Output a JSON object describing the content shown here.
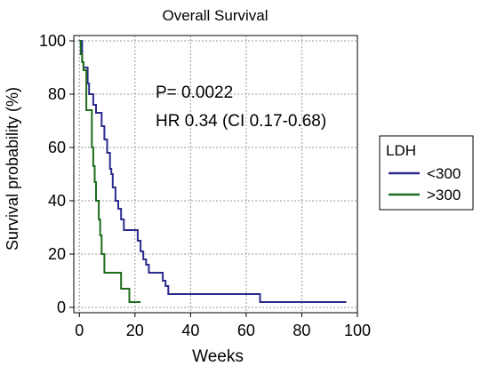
{
  "chart_data": {
    "type": "line",
    "step": true,
    "title": "Overall Survival",
    "xlabel": "Weeks",
    "ylabel": "Survival probability (%)",
    "xlim": [
      -2,
      100
    ],
    "ylim": [
      -2,
      102
    ],
    "xticks": [
      0,
      20,
      40,
      60,
      80,
      100
    ],
    "yticks": [
      0,
      20,
      40,
      60,
      80,
      100
    ],
    "grid": true,
    "grid_style": "dotted",
    "annotations": [
      "P= 0.0022",
      "HR 0.34 (CI 0.17-0.68)"
    ],
    "legend": {
      "title": "LDH",
      "placement": "right",
      "entries": [
        {
          "name": "<300",
          "color": "#2b2b8e"
        },
        {
          "name": ">300",
          "color": "#1e6b1e"
        }
      ]
    },
    "series": [
      {
        "name": "<300",
        "color": "#2b2b8e",
        "x": [
          0,
          1,
          1.5,
          2,
          3,
          3.5,
          4.5,
          5,
          6,
          7.5,
          8,
          9,
          10,
          11,
          11.5,
          12,
          13,
          14,
          15,
          16,
          20,
          21,
          22,
          23,
          24,
          25,
          29,
          30,
          31,
          32,
          64,
          65,
          96
        ],
        "y": [
          100,
          92,
          90,
          90,
          84,
          80,
          80,
          76,
          73,
          73,
          68,
          63,
          58,
          52,
          50,
          45,
          40,
          37,
          33,
          29,
          29,
          25,
          21,
          18,
          16,
          13,
          13,
          10,
          8,
          5,
          5,
          2,
          2
        ]
      },
      {
        "name": ">300",
        "color": "#1e6b1e",
        "x": [
          0,
          0.5,
          1,
          1.5,
          2,
          2.5,
          4,
          4.5,
          5,
          5.5,
          6,
          7,
          7.5,
          8,
          9,
          10,
          14,
          15,
          17,
          18,
          22
        ],
        "y": [
          100,
          95,
          92,
          89,
          89,
          74,
          74,
          60,
          53,
          47,
          40,
          33,
          27,
          20,
          13,
          13,
          13,
          7,
          7,
          2,
          2
        ]
      }
    ]
  }
}
